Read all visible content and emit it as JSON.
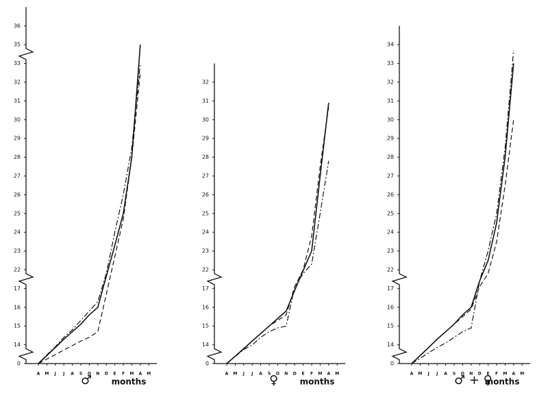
{
  "chart_data": [
    {
      "type": "line",
      "categories": [
        "A",
        "M",
        "J",
        "J",
        "A",
        "S",
        "O",
        "N",
        "D",
        "E",
        "F",
        "M",
        "A",
        "M"
      ],
      "symbol": "♂",
      "xlabel": "months",
      "ylim": [
        0,
        37
      ],
      "yticks": [
        0,
        14,
        15,
        16,
        17,
        22,
        23,
        24,
        25,
        26,
        27,
        28,
        29,
        30,
        31,
        32,
        33,
        35,
        36
      ],
      "series": [
        {
          "style": "solid",
          "color": "#111",
          "values": [
            0,
            6,
            12,
            14.3,
            14.7,
            15.1,
            15.6,
            16,
            20.3,
            23.3,
            25,
            28,
            35,
            null
          ]
        },
        {
          "style": "dashed",
          "color": "#111",
          "values": [
            0,
            3.4,
            6.7,
            10.1,
            13.4,
            14.2,
            14.4,
            14.7,
            16.7,
            22.7,
            24.7,
            28,
            32.5,
            null
          ]
        },
        {
          "style": "dashdot",
          "color": "#111",
          "values": [
            0,
            6.5,
            12.5,
            14.4,
            14.8,
            15.3,
            15.8,
            16.3,
            21,
            24,
            26,
            28.5,
            33,
            null
          ]
        }
      ]
    },
    {
      "type": "line",
      "categories": [
        "A",
        "M",
        "J",
        "J",
        "A",
        "S",
        "O",
        "N",
        "D",
        "E",
        "F",
        "M",
        "A",
        "M"
      ],
      "symbol": "♀",
      "xlabel": "months",
      "ylim": [
        0,
        33
      ],
      "yticks": [
        0,
        14,
        15,
        16,
        17,
        22,
        23,
        24,
        25,
        26,
        27,
        28,
        29,
        30,
        31,
        32
      ],
      "series": [
        {
          "style": "solid",
          "color": "#111",
          "values": [
            0,
            5.5,
            11.1,
            14.2,
            14.6,
            15,
            15.4,
            15.8,
            16.9,
            21.8,
            23,
            27,
            30.9,
            null
          ]
        },
        {
          "style": "dashed",
          "color": "#111",
          "values": [
            0,
            5.5,
            11,
            14.2,
            14.6,
            15,
            15.3,
            15.6,
            17.5,
            22,
            23.8,
            27.5,
            30.7,
            null
          ]
        },
        {
          "style": "dashdot",
          "color": "#111",
          "values": [
            0,
            5.3,
            10.5,
            13.9,
            14.4,
            14.7,
            14.9,
            15,
            17.5,
            21,
            22.3,
            25,
            27.8,
            null
          ]
        }
      ]
    },
    {
      "type": "line",
      "categories": [
        "A",
        "M",
        "J",
        "J",
        "A",
        "S",
        "O",
        "N",
        "D",
        "E",
        "F",
        "M",
        "A",
        "M"
      ],
      "symbol": "♂ + ♀",
      "xlabel": "months",
      "ylim": [
        0,
        35
      ],
      "yticks": [
        0,
        14,
        15,
        16,
        17,
        22,
        23,
        24,
        25,
        26,
        27,
        28,
        29,
        30,
        31,
        32,
        33,
        34
      ],
      "series": [
        {
          "style": "solid",
          "color": "#111",
          "values": [
            0,
            6,
            12,
            14.3,
            14.7,
            15.1,
            15.6,
            16,
            19,
            22.5,
            24.5,
            28,
            33,
            null
          ]
        },
        {
          "style": "dashed",
          "color": "#111",
          "values": [
            0,
            6,
            12,
            14.3,
            14.7,
            15.1,
            15.5,
            15.9,
            17.5,
            21,
            23.5,
            26.5,
            30,
            null
          ]
        },
        {
          "style": "dashdot",
          "color": "#111",
          "values": [
            0,
            4,
            8,
            12,
            14.1,
            14.4,
            14.7,
            14.9,
            19,
            23,
            25,
            28.5,
            33.7,
            null
          ]
        }
      ]
    }
  ]
}
